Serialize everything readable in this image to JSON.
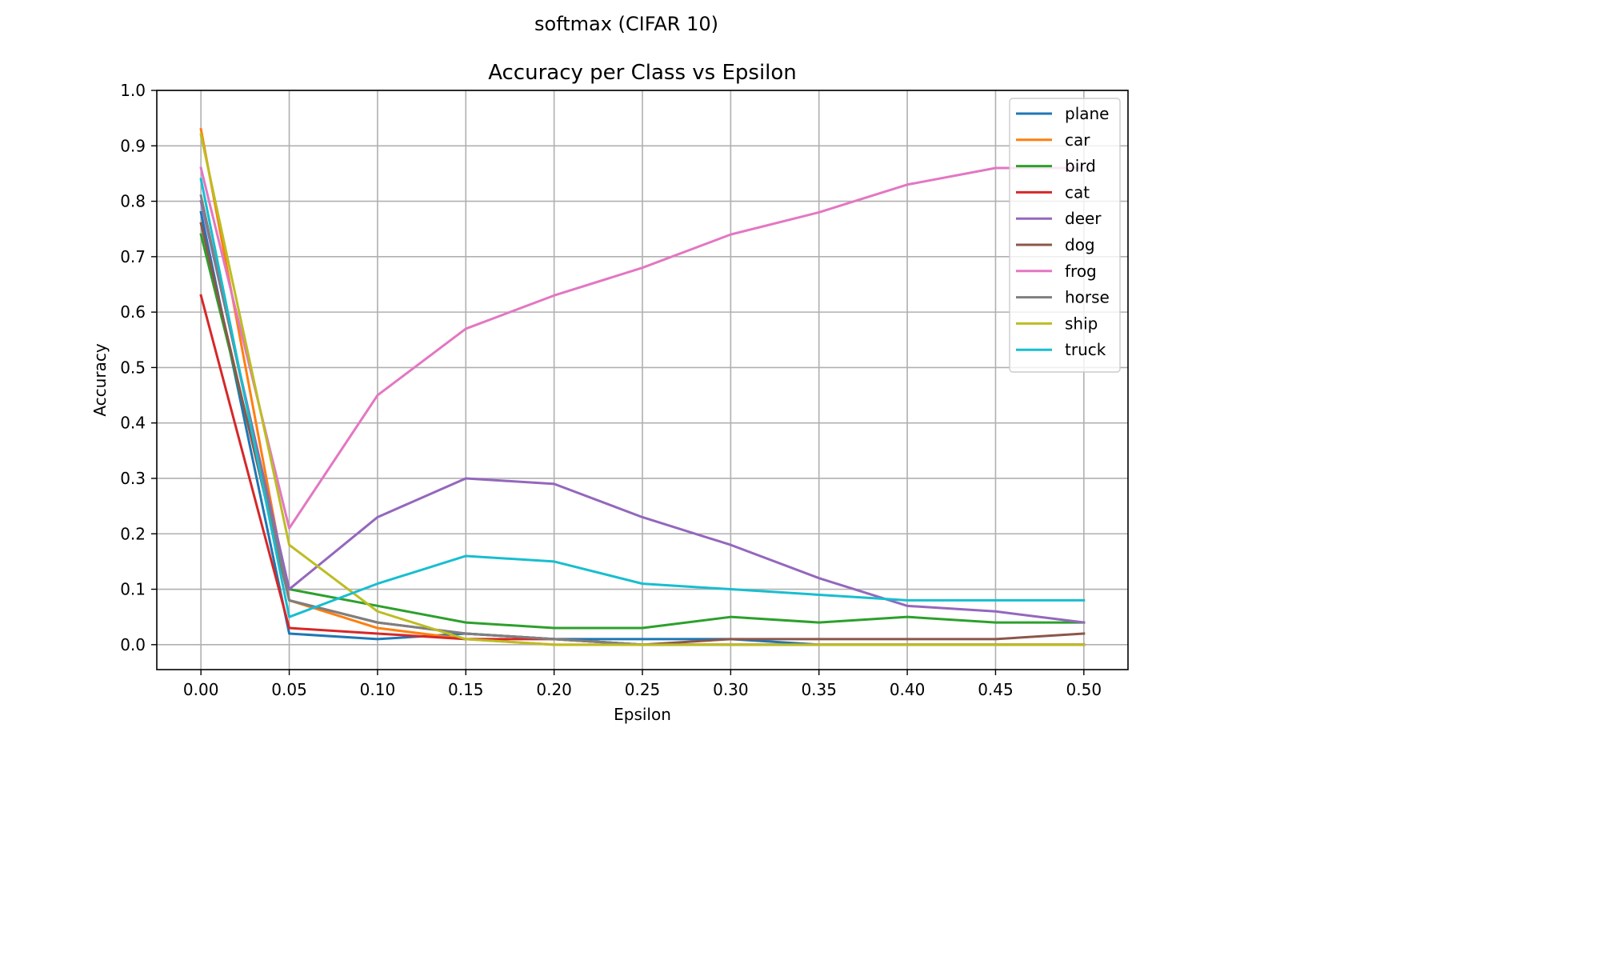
{
  "suptitle": "softmax (CIFAR 10)",
  "chart_data": {
    "type": "line",
    "title": "Accuracy per Class vs Epsilon",
    "xlabel": "Epsilon",
    "ylabel": "Accuracy",
    "x": [
      0.0,
      0.05,
      0.1,
      0.15,
      0.2,
      0.25,
      0.3,
      0.35,
      0.4,
      0.45,
      0.5
    ],
    "xticks": [
      "0.00",
      "0.05",
      "0.10",
      "0.15",
      "0.20",
      "0.25",
      "0.30",
      "0.35",
      "0.40",
      "0.45",
      "0.50"
    ],
    "yticks": [
      "0.0",
      "0.1",
      "0.2",
      "0.3",
      "0.4",
      "0.5",
      "0.6",
      "0.7",
      "0.8",
      "0.9",
      "1.0"
    ],
    "xlim": [
      -0.025,
      0.525
    ],
    "ylim": [
      -0.045,
      1.0
    ],
    "grid": true,
    "legend_position": "top-right",
    "series": [
      {
        "name": "plane",
        "color": "#1f77b4",
        "values": [
          0.78,
          0.02,
          0.01,
          0.02,
          0.01,
          0.01,
          0.01,
          0.0,
          0.0,
          0.0,
          0.0
        ]
      },
      {
        "name": "car",
        "color": "#ff7f0e",
        "values": [
          0.93,
          0.08,
          0.03,
          0.01,
          0.0,
          0.0,
          0.0,
          0.0,
          0.0,
          0.0,
          0.0
        ]
      },
      {
        "name": "bird",
        "color": "#2ca02c",
        "values": [
          0.74,
          0.1,
          0.07,
          0.04,
          0.03,
          0.03,
          0.05,
          0.04,
          0.05,
          0.04,
          0.04
        ]
      },
      {
        "name": "cat",
        "color": "#d62728",
        "values": [
          0.63,
          0.03,
          0.02,
          0.01,
          0.01,
          0.0,
          0.0,
          0.0,
          0.0,
          0.0,
          0.0
        ]
      },
      {
        "name": "deer",
        "color": "#9467bd",
        "values": [
          0.8,
          0.1,
          0.23,
          0.3,
          0.29,
          0.23,
          0.18,
          0.12,
          0.07,
          0.06,
          0.04
        ]
      },
      {
        "name": "dog",
        "color": "#8c564b",
        "values": [
          0.76,
          0.08,
          0.04,
          0.02,
          0.01,
          0.0,
          0.01,
          0.01,
          0.01,
          0.01,
          0.02
        ]
      },
      {
        "name": "frog",
        "color": "#e377c2",
        "values": [
          0.86,
          0.21,
          0.45,
          0.57,
          0.63,
          0.68,
          0.74,
          0.78,
          0.83,
          0.86,
          0.86
        ]
      },
      {
        "name": "horse",
        "color": "#7f7f7f",
        "values": [
          0.81,
          0.08,
          0.04,
          0.02,
          0.01,
          0.0,
          0.0,
          0.0,
          0.0,
          0.0,
          0.0
        ]
      },
      {
        "name": "ship",
        "color": "#bcbd22",
        "values": [
          0.92,
          0.18,
          0.06,
          0.01,
          0.0,
          0.0,
          0.0,
          0.0,
          0.0,
          0.0,
          0.0
        ]
      },
      {
        "name": "truck",
        "color": "#17becf",
        "values": [
          0.84,
          0.05,
          0.11,
          0.16,
          0.15,
          0.11,
          0.1,
          0.09,
          0.08,
          0.08,
          0.08
        ]
      }
    ]
  }
}
